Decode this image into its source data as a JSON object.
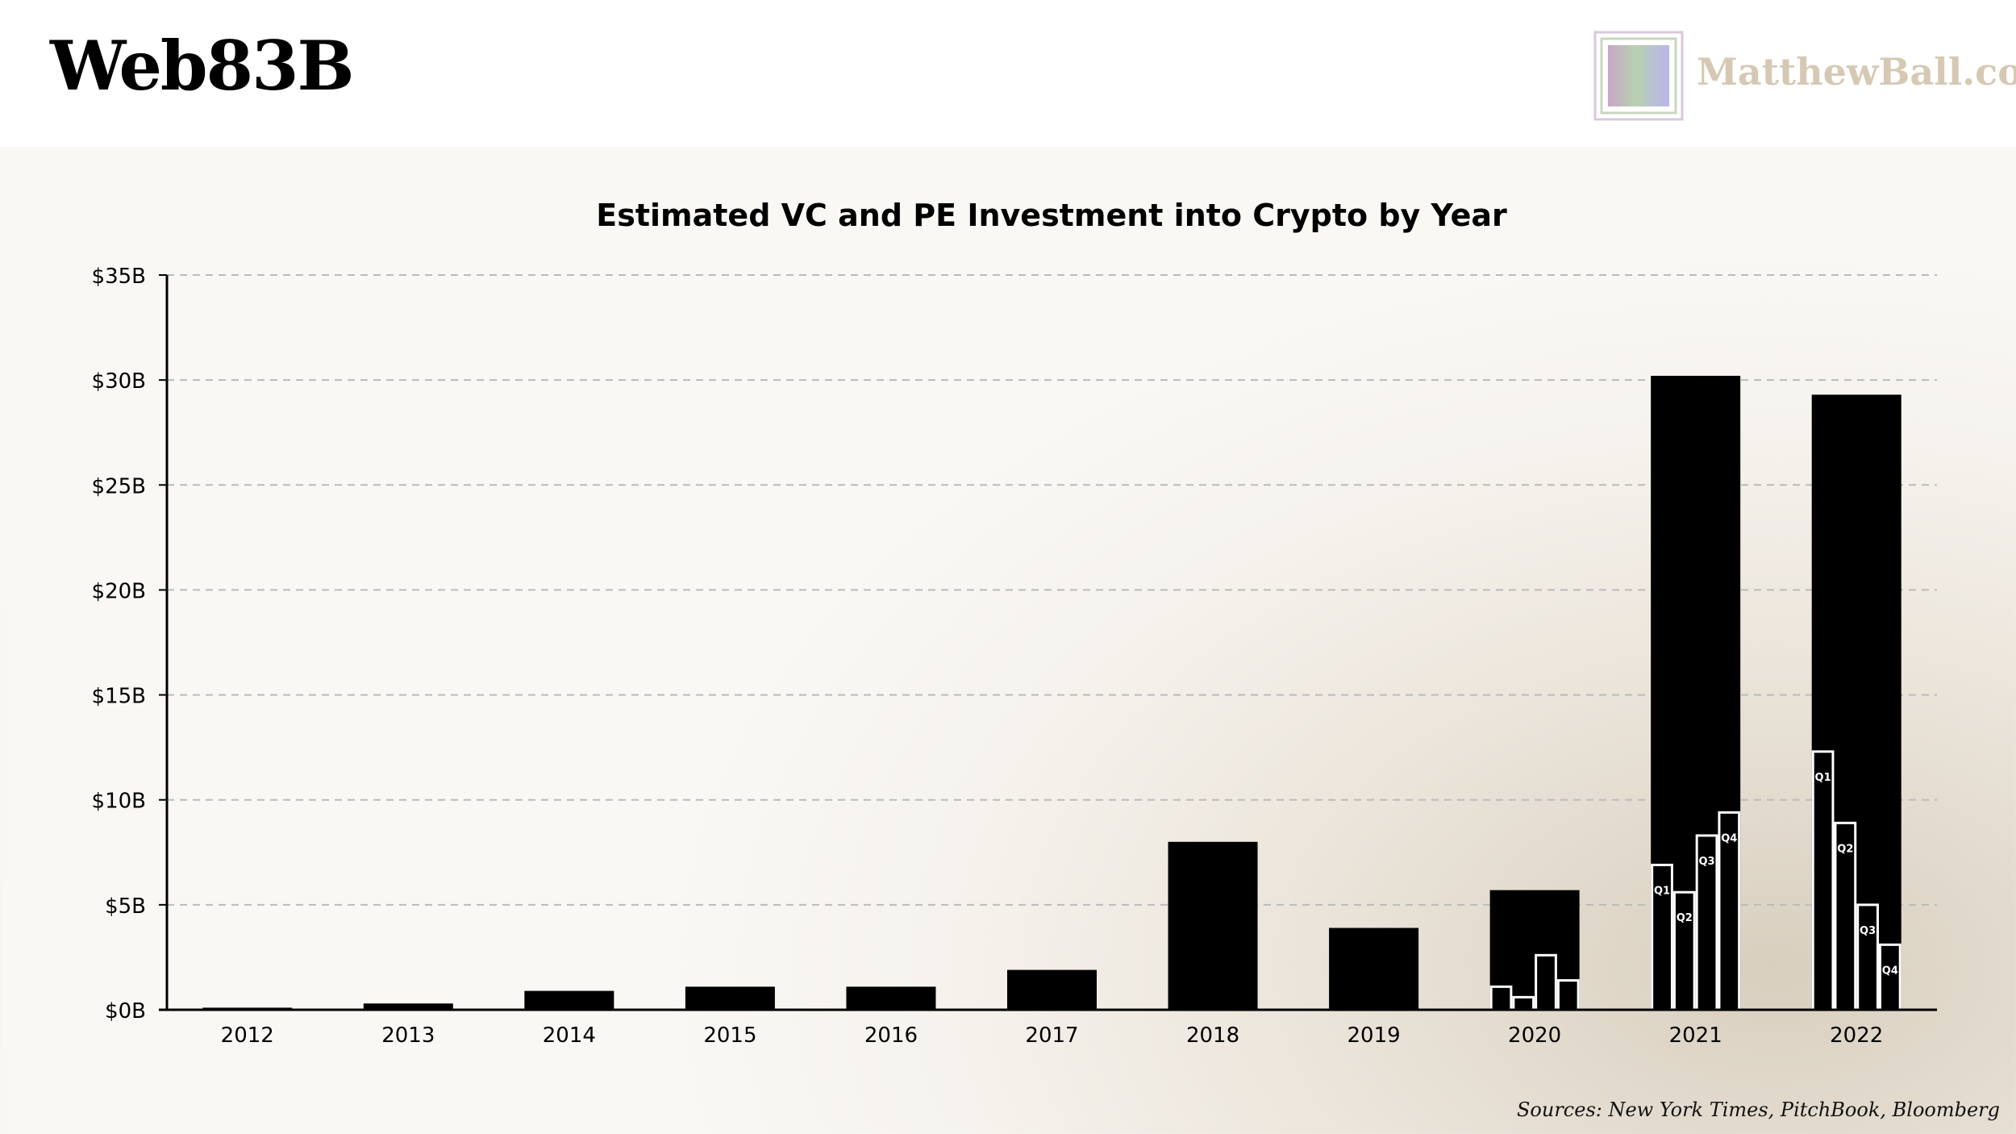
{
  "header": {
    "title": "Web83B",
    "brand": "MatthewBall.co"
  },
  "source": "Sources: New York Times, PitchBook, Bloomberg",
  "colors": {
    "bar": "#000000",
    "quarter_bar_stroke": "#ffffff",
    "grid": "#bbbbbb",
    "brand": "#d6c9b4"
  },
  "chart_data": {
    "type": "bar",
    "title": "Estimated VC and PE Investment into Crypto by Year",
    "xlabel": "",
    "ylabel": "",
    "ylim": [
      0,
      35
    ],
    "yticks": [
      0,
      5,
      10,
      15,
      20,
      25,
      30,
      35
    ],
    "ytick_labels": [
      "$0B",
      "$5B",
      "$10B",
      "$15B",
      "$20B",
      "$25B",
      "$30B",
      "$35B"
    ],
    "grid": "horizontal dashed",
    "categories": [
      "2012",
      "2013",
      "2014",
      "2015",
      "2016",
      "2017",
      "2018",
      "2019",
      "2020",
      "2021",
      "2022"
    ],
    "values": [
      0.1,
      0.3,
      0.9,
      1.1,
      1.1,
      1.9,
      8.0,
      3.9,
      5.7,
      30.2,
      29.3
    ],
    "quarterly": [
      {
        "year": "2020",
        "labels": [
          "",
          "",
          "",
          ""
        ],
        "values": [
          1.1,
          0.6,
          2.6,
          1.4
        ]
      },
      {
        "year": "2021",
        "labels": [
          "Q1",
          "Q2",
          "Q3",
          "Q4"
        ],
        "values": [
          6.9,
          5.6,
          8.3,
          9.4
        ]
      },
      {
        "year": "2022",
        "labels": [
          "Q1",
          "Q2",
          "Q3",
          "Q4"
        ],
        "values": [
          12.3,
          8.9,
          5.0,
          3.1
        ]
      }
    ]
  }
}
